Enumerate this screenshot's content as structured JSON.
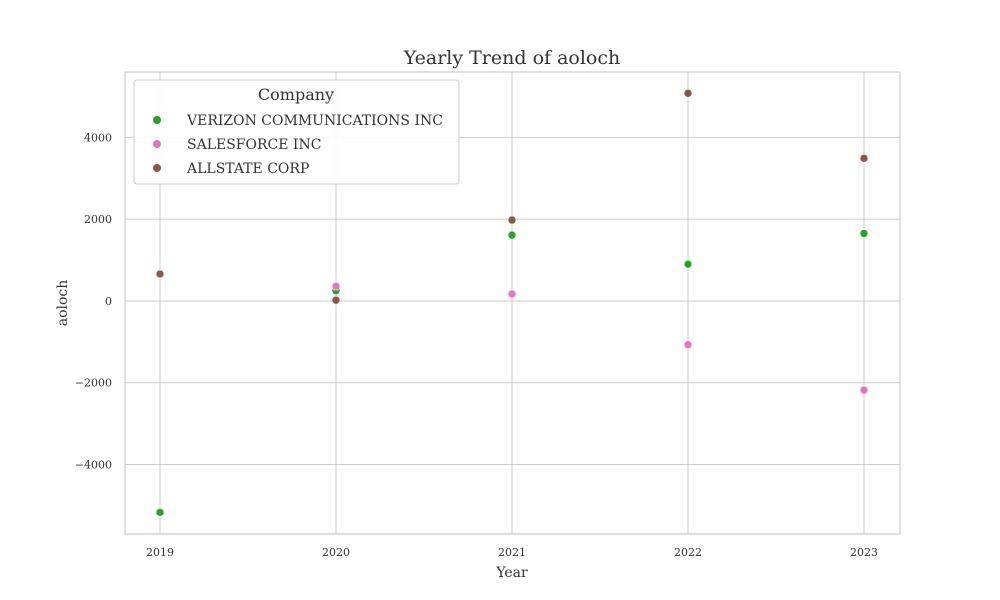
{
  "chart_data": {
    "type": "scatter",
    "title": "Yearly Trend of aoloch",
    "xlabel": "Year",
    "ylabel": "aoloch",
    "x": [
      "2019",
      "2020",
      "2021",
      "2022",
      "2023"
    ],
    "yticks": [
      -4000,
      -2000,
      0,
      2000,
      4000
    ],
    "ytick_labels": [
      "−4000",
      "−2000",
      "0",
      "2000",
      "4000"
    ],
    "ylim": [
      -5700,
      5600
    ],
    "grid": true,
    "legend": {
      "title": "Company",
      "placement": "top-left"
    },
    "series": [
      {
        "name": "VERIZON COMMUNICATIONS INC",
        "color": "#2ca02c",
        "points": [
          {
            "x": "2019",
            "y": -5170
          },
          {
            "x": "2020",
            "y": 250
          },
          {
            "x": "2021",
            "y": 1610
          },
          {
            "x": "2022",
            "y": 900
          },
          {
            "x": "2023",
            "y": 1650
          }
        ]
      },
      {
        "name": "SALESFORCE INC",
        "color": "#e377c2",
        "points": [
          {
            "x": "2020",
            "y": 360
          },
          {
            "x": "2021",
            "y": 170
          },
          {
            "x": "2022",
            "y": -1070
          },
          {
            "x": "2023",
            "y": -2180
          }
        ]
      },
      {
        "name": "ALLSTATE CORP",
        "color": "#8c564b",
        "points": [
          {
            "x": "2019",
            "y": 660
          },
          {
            "x": "2020",
            "y": 20
          },
          {
            "x": "2021",
            "y": 1980
          },
          {
            "x": "2022",
            "y": 5080
          },
          {
            "x": "2023",
            "y": 3490
          }
        ]
      }
    ]
  }
}
